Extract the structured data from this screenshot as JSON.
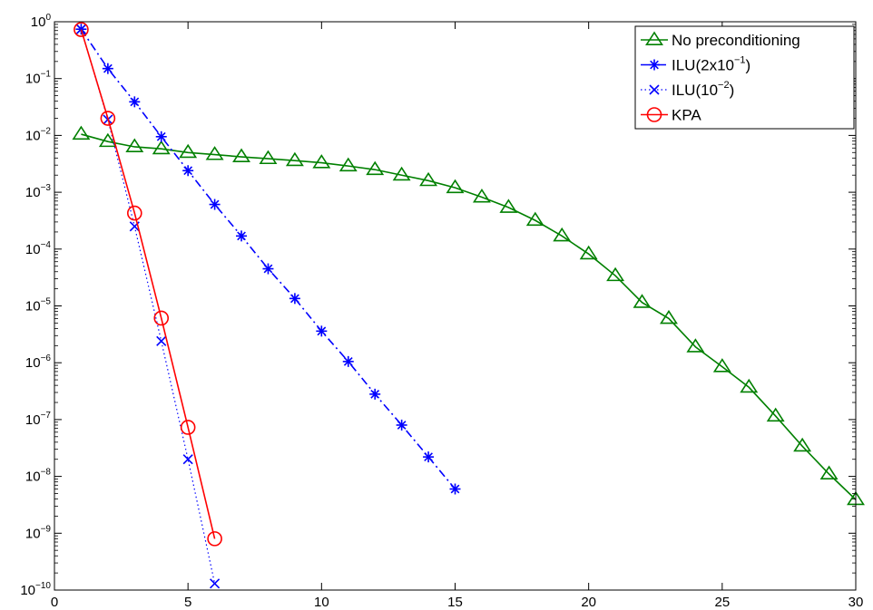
{
  "chart_data": {
    "type": "line",
    "title": "",
    "xlabel": "",
    "ylabel": "",
    "x_scale": "linear",
    "y_scale": "log",
    "xlim": [
      0,
      30
    ],
    "ylim": [
      1e-10,
      1
    ],
    "xticks": [
      0,
      5,
      10,
      15,
      20,
      25,
      30
    ],
    "xtick_labels": [
      "0",
      "5",
      "10",
      "15",
      "20",
      "25",
      "30"
    ],
    "ytick_exponents": [
      0,
      -1,
      -2,
      -3,
      -4,
      -5,
      -6,
      -7,
      -8,
      -9,
      -10
    ],
    "ytick_base": "10",
    "grid": false,
    "legend_position": "top-right",
    "series": [
      {
        "name": "No preconditioning",
        "legend_parts": [
          "No preconditioning"
        ],
        "color": "#008000",
        "line_style": "solid",
        "marker": "triangle",
        "x": [
          1,
          2,
          3,
          4,
          5,
          6,
          7,
          8,
          9,
          10,
          11,
          12,
          13,
          14,
          15,
          16,
          17,
          18,
          19,
          20,
          21,
          22,
          23,
          24,
          25,
          26,
          27,
          28,
          29,
          30
        ],
        "y": [
          0.0105,
          0.0078,
          0.0063,
          0.0058,
          0.005,
          0.0046,
          0.0042,
          0.0039,
          0.0036,
          0.0033,
          0.0029,
          0.0025,
          0.002,
          0.0016,
          0.0012,
          0.00082,
          0.00054,
          0.00032,
          0.00017,
          8.2e-05,
          3.4e-05,
          1.15e-05,
          6e-06,
          1.9e-06,
          8.5e-07,
          3.7e-07,
          1.15e-07,
          3.4e-08,
          1.1e-08,
          3.9e-09
        ]
      },
      {
        "name": "ILU(2x10^-1)",
        "legend_parts": [
          "ILU(2x10",
          "−1",
          ")"
        ],
        "color": "#0000ff",
        "line_style": "dashdot",
        "marker": "star",
        "x": [
          1,
          2,
          3,
          4,
          5,
          6,
          7,
          8,
          9,
          10,
          11,
          12,
          13,
          14,
          15
        ],
        "y": [
          0.74,
          0.15,
          0.039,
          0.0095,
          0.0024,
          0.00061,
          0.00017,
          4.5e-05,
          1.35e-05,
          3.6e-06,
          1.05e-06,
          2.8e-07,
          8e-08,
          2.2e-08,
          6e-09
        ]
      },
      {
        "name": "ILU(10^-2)",
        "legend_parts": [
          "ILU(10",
          "−2",
          ")"
        ],
        "color": "#0000ff",
        "line_style": "dotted",
        "marker": "x",
        "x": [
          1,
          2,
          3,
          4,
          5,
          6
        ],
        "y": [
          0.74,
          0.019,
          0.00025,
          2.4e-06,
          2e-08,
          1.3e-10
        ]
      },
      {
        "name": "KPA",
        "legend_parts": [
          "KPA"
        ],
        "color": "#ff0000",
        "line_style": "solid",
        "marker": "circle",
        "x": [
          1,
          2,
          3,
          4,
          5,
          6
        ],
        "y": [
          0.73,
          0.02,
          0.00043,
          6.1e-06,
          7.3e-08,
          8e-10
        ]
      }
    ]
  }
}
